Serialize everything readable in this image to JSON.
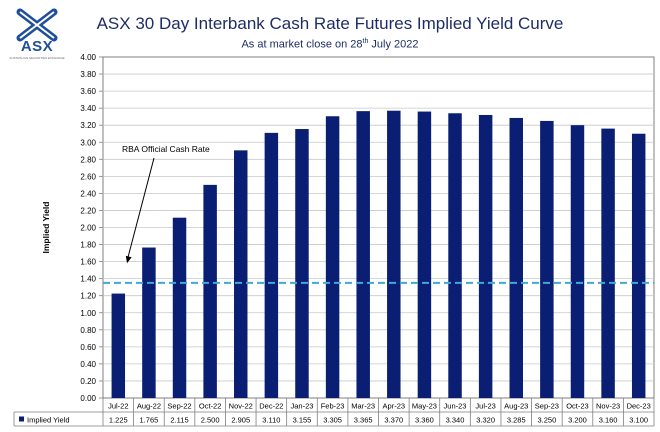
{
  "brand": {
    "logo_text": "ASX",
    "logo_subtext": "AUSTRALIAN SECURITIES EXCHANGE",
    "colors": {
      "accent": "#1f4e9c",
      "title": "#1e2d66",
      "bar": "#0a1e73",
      "cash_rate_line": "#3fa9dc"
    }
  },
  "chart_data": {
    "type": "bar",
    "title": "ASX 30 Day Interbank Cash Rate Futures Implied Yield Curve",
    "subtitle_prefix": "As at market close on 28",
    "subtitle_sup": "th",
    "subtitle_suffix": " July 2022",
    "ylabel": "Implied Yield",
    "xlabel": "",
    "ylim": [
      0,
      4.0
    ],
    "ytick_step": 0.2,
    "grid": true,
    "categories": [
      "Jul-22",
      "Aug-22",
      "Sep-22",
      "Oct-22",
      "Nov-22",
      "Dec-22",
      "Jan-23",
      "Feb-23",
      "Mar-23",
      "Apr-23",
      "May-23",
      "Jun-23",
      "Jul-23",
      "Aug-23",
      "Sep-23",
      "Oct-23",
      "Nov-23",
      "Dec-23"
    ],
    "series": [
      {
        "name": "Implied Yield",
        "values": [
          1.225,
          1.765,
          2.115,
          2.5,
          2.905,
          3.11,
          3.155,
          3.305,
          3.365,
          3.37,
          3.36,
          3.34,
          3.32,
          3.285,
          3.25,
          3.2,
          3.16,
          3.1
        ],
        "value_labels": [
          "1.225",
          "1.765",
          "2.115",
          "2.500",
          "2.905",
          "3.110",
          "3.155",
          "3.305",
          "3.365",
          "3.370",
          "3.360",
          "3.340",
          "3.320",
          "3.285",
          "3.250",
          "3.200",
          "3.160",
          "3.100"
        ]
      }
    ],
    "annotations": [
      {
        "text": "RBA Official Cash Rate",
        "reference_value": 1.35
      }
    ],
    "legend_placement": "data-table-below"
  }
}
